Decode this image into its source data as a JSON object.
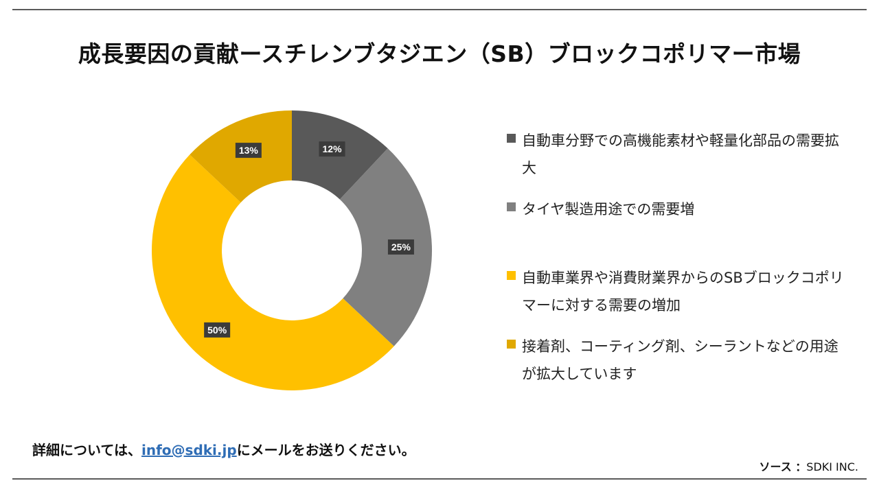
{
  "title": "成長要因の貢献ースチレンブタジエン（SB）ブロックコポリマー市場",
  "chart_data": {
    "type": "pie",
    "variant": "donut",
    "start_angle": "12 o'clock, clockwise",
    "slices": [
      {
        "label": "自動車分野での高機能素材や軽量化部品の需要拡大",
        "value": 12,
        "display": "12%",
        "color": "#595959"
      },
      {
        "label": "タイヤ製造用途での需要増",
        "value": 25,
        "display": "25%",
        "color": "#808080"
      },
      {
        "label": "自動車業界や消費財業界からのSBブロックコポリマーに対する需要の増加",
        "value": 50,
        "display": "50%",
        "color": "#ffc000"
      },
      {
        "label": "接着剤、コーティング剤、シーラントなどの用途が拡大しています",
        "value": 13,
        "display": "13%",
        "color": "#e0a800"
      }
    ],
    "legend_position": "right"
  },
  "footer": {
    "prefix": "詳細については、",
    "email": "info@sdki.jp",
    "suffix": "にメールをお送りください。"
  },
  "source": {
    "label": "ソース ：",
    "value": "SDKI INC."
  }
}
